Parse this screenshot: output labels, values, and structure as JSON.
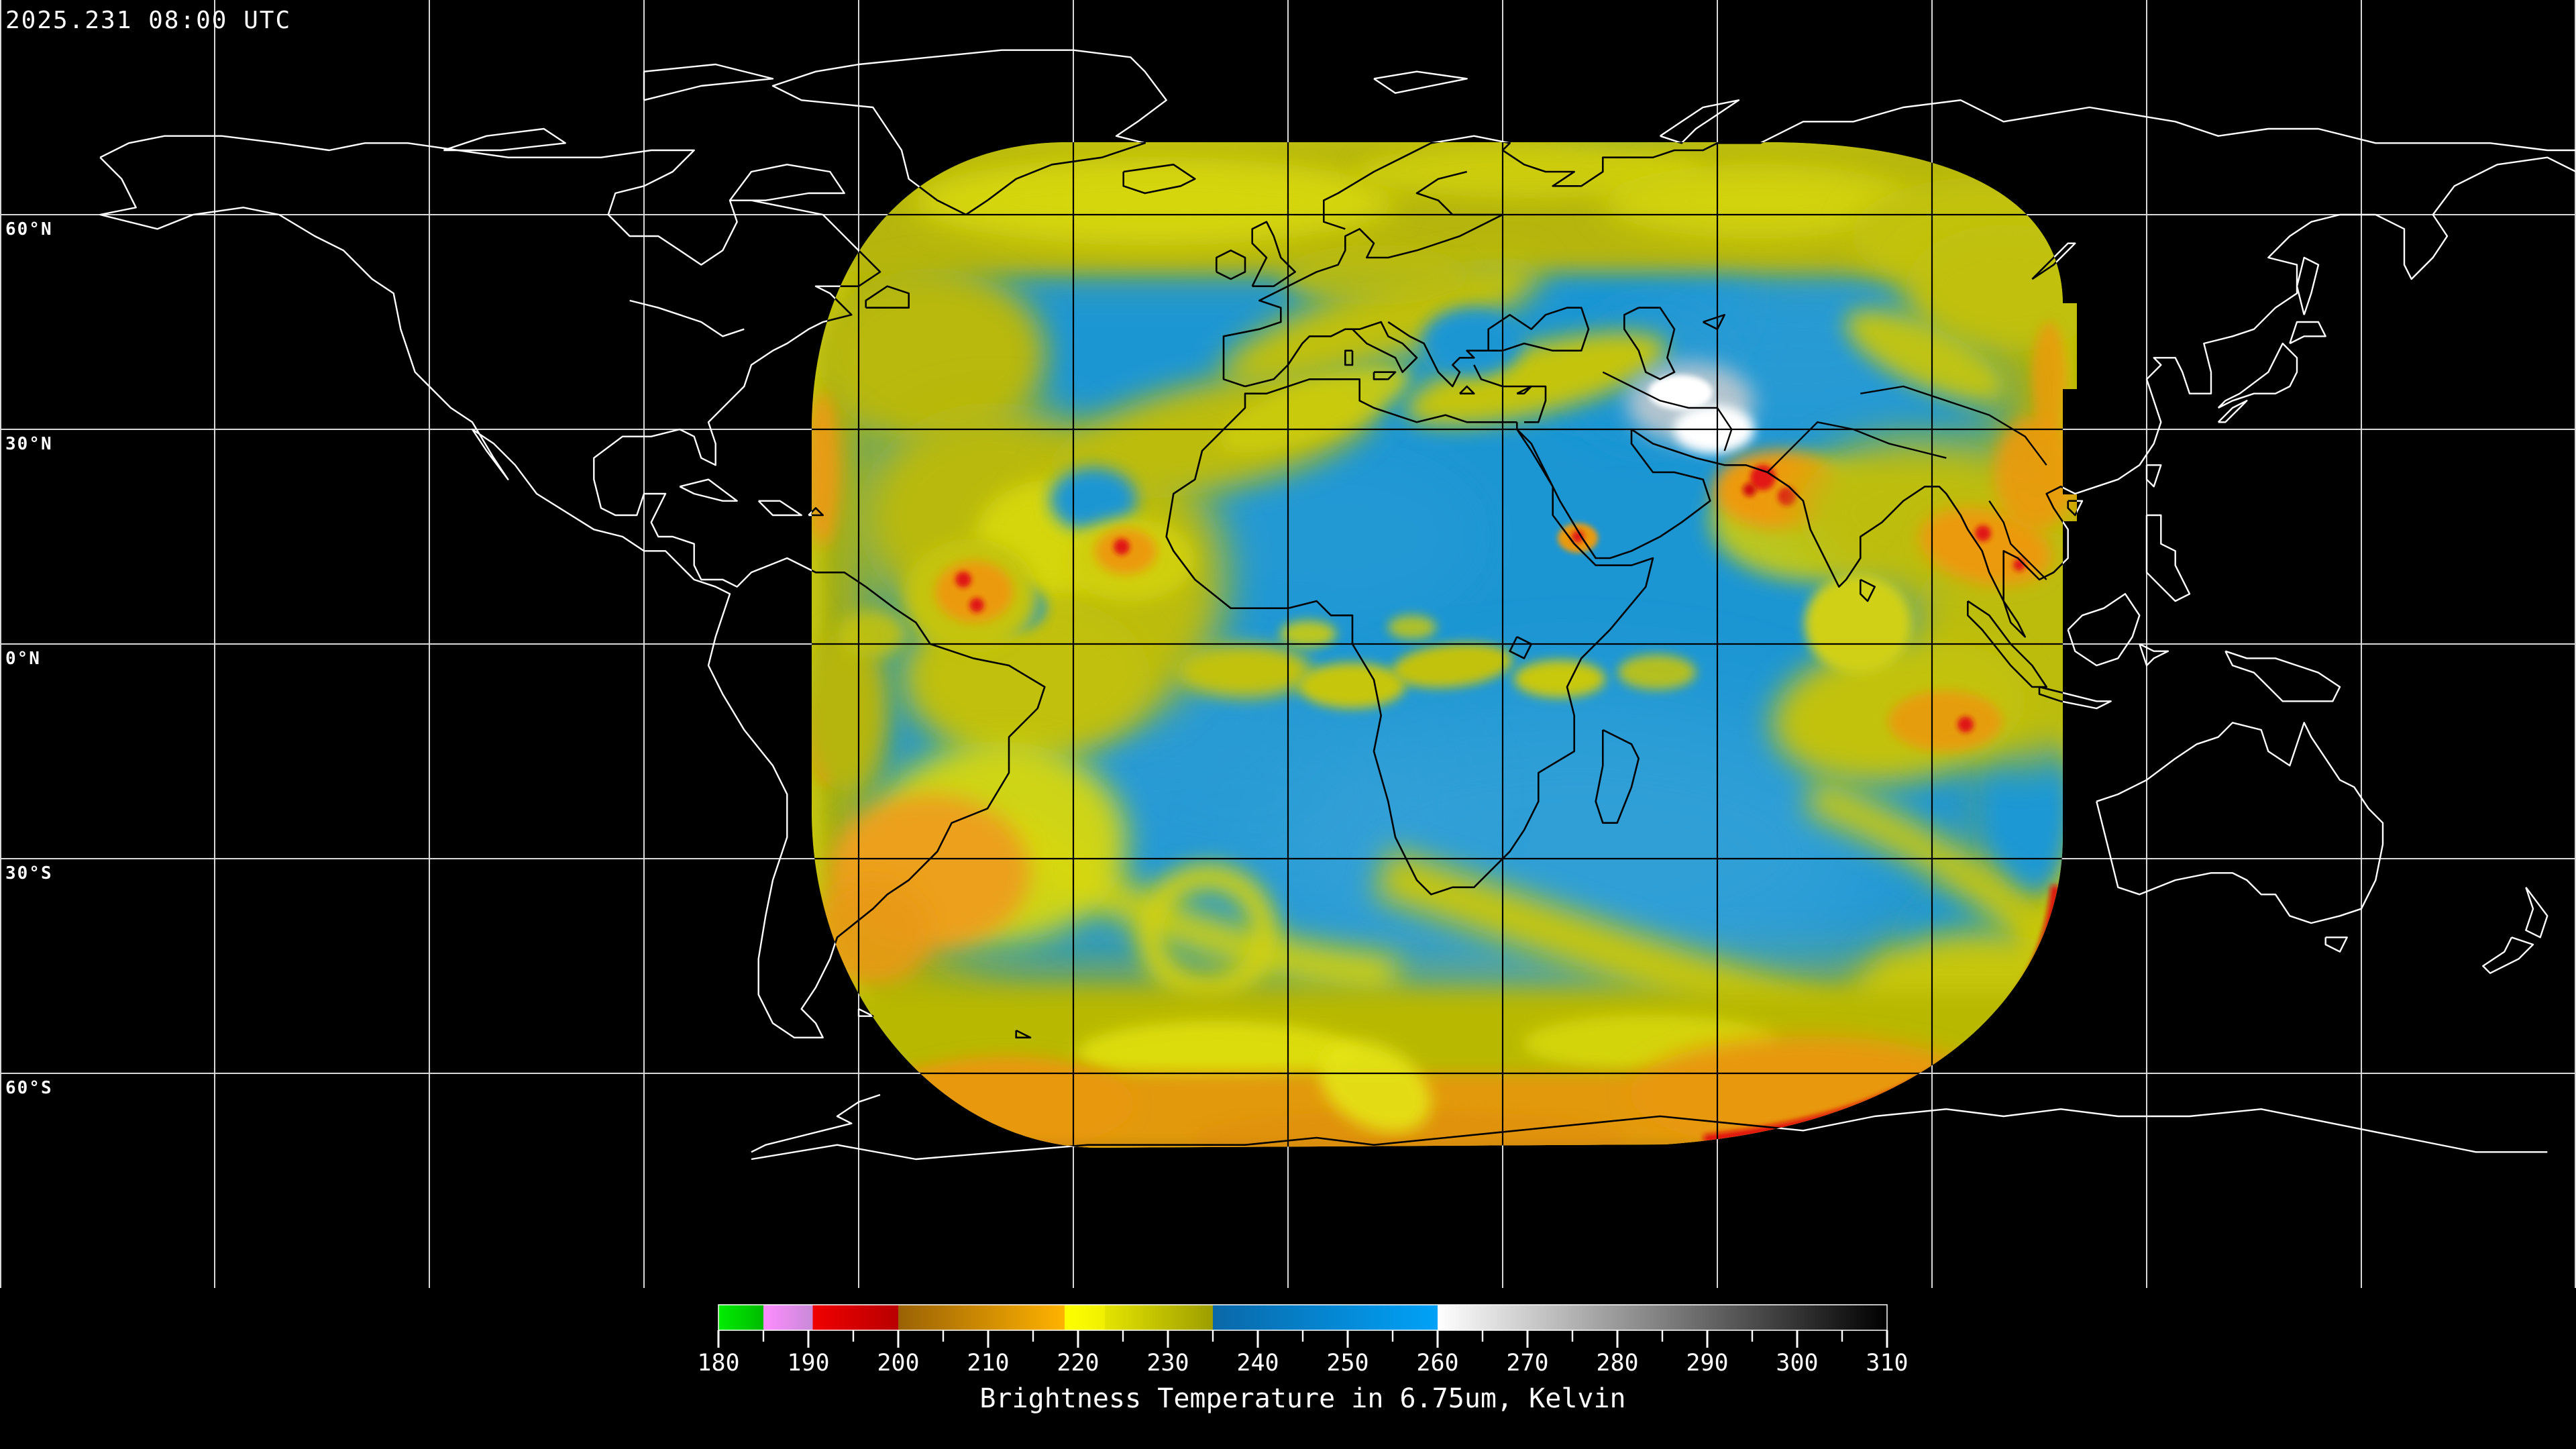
{
  "header": {
    "timestamp": "2025.231 08:00 UTC"
  },
  "map": {
    "projection": "equirectangular",
    "lon_range_deg": [
      -180,
      180
    ],
    "lat_range_deg": [
      -90,
      90
    ],
    "grid_spacing_deg": 30,
    "background_color": "#000000",
    "gridline_color_outside_swath": "#d9d9d9",
    "gridline_color_inside_swath": "#000000",
    "coastline_color_outside_swath": "#ffffff",
    "coastline_color_inside_swath": "#000000",
    "latitude_labels": [
      {
        "label": "60°N",
        "lat": 60
      },
      {
        "label": "30°N",
        "lat": 30
      },
      {
        "label": "0°N",
        "lat": 0
      },
      {
        "label": "30°S",
        "lat": -30
      },
      {
        "label": "60°S",
        "lat": -60
      }
    ],
    "swath": {
      "description": "geostationary satellite water-vapor brightness temperature swath",
      "lon_range_deg": [
        -66,
        108
      ],
      "lat_range_deg": [
        -72,
        70
      ],
      "dominant_colors": {
        "warm_clear": "#1b96d3",
        "mid_cloud": "#b4b408",
        "cold_cloud": "#e8e800",
        "very_cold_cloud": "#ec9a11",
        "extreme_cold_cloud": "#e01212",
        "warm_surface_patch": "#ffffff",
        "limb_rim": "#ee8ee6"
      }
    }
  },
  "colorbar": {
    "title": "Brightness Temperature in 6.75um, Kelvin",
    "unit": "Kelvin",
    "min": 180,
    "max": 310,
    "major_tick_step": 10,
    "minor_tick_step": 5,
    "major_ticks": [
      180,
      190,
      200,
      210,
      220,
      230,
      240,
      250,
      260,
      270,
      280,
      290,
      300,
      310
    ],
    "segments": [
      {
        "from": 180,
        "to": 185,
        "start_color": "#00ee00",
        "end_color": "#00bb00"
      },
      {
        "from": 185,
        "to": 190.5,
        "start_color": "#ff8cff",
        "end_color": "#c88ad8"
      },
      {
        "from": 190.5,
        "to": 200,
        "start_color": "#f00000",
        "end_color": "#b80000"
      },
      {
        "from": 200,
        "to": 218.5,
        "start_color": "#9a6205",
        "end_color": "#ffb300"
      },
      {
        "from": 218.5,
        "to": 223,
        "start_color": "#ffff00",
        "end_color": "#f0f000"
      },
      {
        "from": 223,
        "to": 235,
        "start_color": "#e4e400",
        "end_color": "#9d9d00"
      },
      {
        "from": 235,
        "to": 260,
        "start_color": "#0a68a8",
        "end_color": "#00a2f8"
      },
      {
        "from": 260,
        "to": 310,
        "start_color": "#ffffff",
        "end_color": "#000000"
      }
    ]
  }
}
